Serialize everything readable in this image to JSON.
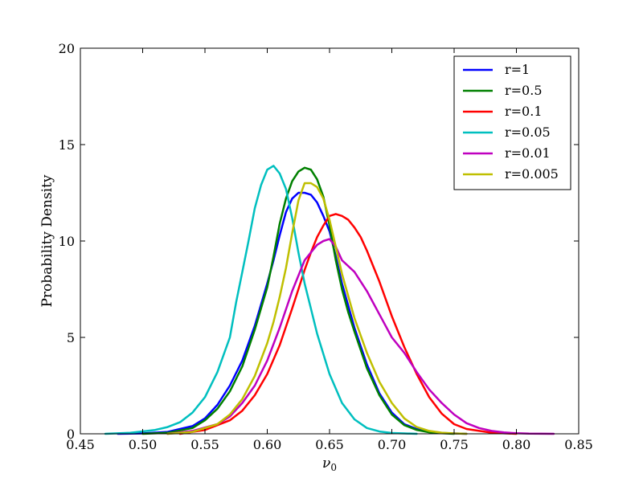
{
  "chart_data": {
    "type": "line",
    "title": "",
    "xlabel": "ν",
    "xlabel_subscript": "0",
    "ylabel": "Probability Density",
    "xlim": [
      0.45,
      0.85
    ],
    "ylim": [
      0,
      20
    ],
    "xticks": [
      0.45,
      0.5,
      0.55,
      0.6,
      0.65,
      0.7,
      0.75,
      0.8,
      0.85
    ],
    "xtick_labels": [
      "0.45",
      "0.50",
      "0.55",
      "0.60",
      "0.65",
      "0.70",
      "0.75",
      "0.80",
      "0.85"
    ],
    "yticks": [
      0,
      5,
      10,
      15,
      20
    ],
    "ytick_labels": [
      "0",
      "5",
      "10",
      "15",
      "20"
    ],
    "grid": false,
    "legend_position": "top-right",
    "series": [
      {
        "name": "r=1",
        "color": "#0000ff",
        "x": [
          0.48,
          0.5,
          0.52,
          0.54,
          0.55,
          0.56,
          0.57,
          0.58,
          0.59,
          0.6,
          0.605,
          0.61,
          0.615,
          0.62,
          0.625,
          0.63,
          0.635,
          0.64,
          0.645,
          0.65,
          0.655,
          0.66,
          0.67,
          0.68,
          0.69,
          0.7,
          0.71,
          0.72,
          0.73,
          0.74,
          0.75,
          0.76
        ],
        "y": [
          0.0,
          0.02,
          0.1,
          0.4,
          0.8,
          1.5,
          2.5,
          3.8,
          5.6,
          7.8,
          9.0,
          10.3,
          11.5,
          12.2,
          12.5,
          12.5,
          12.4,
          12.0,
          11.3,
          10.5,
          9.2,
          7.8,
          5.5,
          3.6,
          2.1,
          1.1,
          0.5,
          0.25,
          0.1,
          0.04,
          0.02,
          0.0
        ]
      },
      {
        "name": "r=0.5",
        "color": "#008000",
        "x": [
          0.5,
          0.52,
          0.54,
          0.55,
          0.56,
          0.57,
          0.58,
          0.59,
          0.6,
          0.605,
          0.61,
          0.615,
          0.62,
          0.625,
          0.63,
          0.635,
          0.64,
          0.645,
          0.65,
          0.655,
          0.66,
          0.665,
          0.67,
          0.68,
          0.69,
          0.7,
          0.71,
          0.72,
          0.73,
          0.74,
          0.75
        ],
        "y": [
          0.0,
          0.05,
          0.3,
          0.7,
          1.3,
          2.2,
          3.5,
          5.4,
          7.6,
          9.2,
          10.9,
          12.2,
          13.1,
          13.6,
          13.8,
          13.7,
          13.2,
          12.3,
          10.8,
          9.0,
          7.5,
          6.3,
          5.3,
          3.4,
          2.0,
          1.0,
          0.45,
          0.2,
          0.08,
          0.03,
          0.0
        ]
      },
      {
        "name": "r=0.1",
        "color": "#ff0000",
        "x": [
          0.53,
          0.55,
          0.57,
          0.58,
          0.59,
          0.6,
          0.61,
          0.62,
          0.625,
          0.63,
          0.635,
          0.64,
          0.645,
          0.65,
          0.655,
          0.66,
          0.665,
          0.67,
          0.675,
          0.68,
          0.69,
          0.7,
          0.71,
          0.72,
          0.73,
          0.74,
          0.75,
          0.76,
          0.78,
          0.8
        ],
        "y": [
          0.0,
          0.2,
          0.7,
          1.2,
          2.0,
          3.1,
          4.6,
          6.5,
          7.5,
          8.5,
          9.4,
          10.2,
          10.8,
          11.3,
          11.4,
          11.3,
          11.1,
          10.7,
          10.2,
          9.5,
          7.9,
          6.1,
          4.5,
          3.1,
          1.9,
          1.05,
          0.5,
          0.25,
          0.06,
          0.0
        ]
      },
      {
        "name": "r=0.05",
        "color": "#00bfbf",
        "x": [
          0.47,
          0.49,
          0.51,
          0.52,
          0.53,
          0.54,
          0.55,
          0.56,
          0.57,
          0.575,
          0.58,
          0.585,
          0.59,
          0.595,
          0.6,
          0.605,
          0.61,
          0.615,
          0.62,
          0.625,
          0.63,
          0.635,
          0.64,
          0.65,
          0.66,
          0.67,
          0.68,
          0.69,
          0.7,
          0.71,
          0.72
        ],
        "y": [
          0.0,
          0.05,
          0.2,
          0.35,
          0.6,
          1.1,
          1.9,
          3.2,
          5.0,
          6.8,
          8.4,
          10.0,
          11.7,
          12.9,
          13.7,
          13.9,
          13.5,
          12.7,
          11.2,
          9.4,
          7.8,
          6.5,
          5.2,
          3.1,
          1.6,
          0.75,
          0.3,
          0.12,
          0.04,
          0.02,
          0.0
        ]
      },
      {
        "name": "r=0.01",
        "color": "#bf00bf",
        "x": [
          0.52,
          0.54,
          0.56,
          0.57,
          0.58,
          0.59,
          0.6,
          0.61,
          0.62,
          0.63,
          0.64,
          0.645,
          0.65,
          0.655,
          0.66,
          0.67,
          0.68,
          0.69,
          0.7,
          0.71,
          0.72,
          0.73,
          0.74,
          0.75,
          0.76,
          0.77,
          0.78,
          0.79,
          0.8,
          0.81,
          0.83
        ],
        "y": [
          0.0,
          0.15,
          0.5,
          0.9,
          1.6,
          2.5,
          3.8,
          5.5,
          7.4,
          9.0,
          9.8,
          10.0,
          10.1,
          9.7,
          9.0,
          8.4,
          7.4,
          6.2,
          5.0,
          4.2,
          3.2,
          2.3,
          1.6,
          1.0,
          0.55,
          0.3,
          0.15,
          0.07,
          0.03,
          0.01,
          0.0
        ]
      },
      {
        "name": "r=0.005",
        "color": "#bfbf00",
        "x": [
          0.52,
          0.54,
          0.56,
          0.57,
          0.58,
          0.59,
          0.6,
          0.605,
          0.61,
          0.615,
          0.62,
          0.625,
          0.63,
          0.635,
          0.64,
          0.645,
          0.65,
          0.655,
          0.66,
          0.67,
          0.68,
          0.69,
          0.7,
          0.71,
          0.72,
          0.73,
          0.74,
          0.75,
          0.76
        ],
        "y": [
          0.0,
          0.1,
          0.5,
          1.0,
          1.8,
          3.0,
          4.7,
          5.8,
          7.1,
          8.6,
          10.4,
          12.1,
          13.0,
          13.0,
          12.8,
          12.2,
          11.1,
          9.7,
          8.3,
          6.0,
          4.2,
          2.7,
          1.6,
          0.8,
          0.35,
          0.15,
          0.06,
          0.02,
          0.0
        ]
      }
    ]
  }
}
